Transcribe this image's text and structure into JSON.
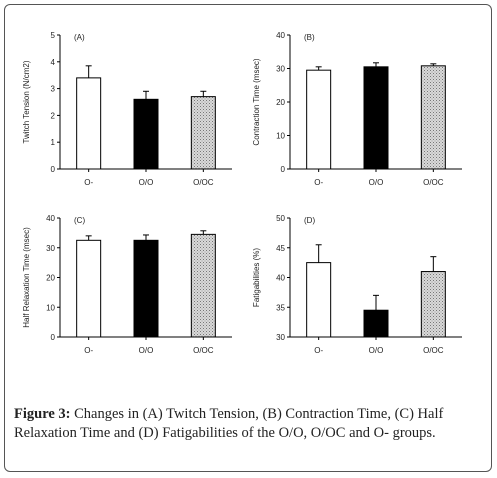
{
  "caption": {
    "label": "Figure 3:",
    "text": "Changes in (A) Twitch Tension, (B) Contraction Time, (C) Half Relaxation Time and (D) Fatigabilities of the O/O, O/OC and O- groups."
  },
  "colors": {
    "frame": "#555555",
    "bar_open": "#ffffff",
    "bar_filled": "#000000",
    "bar_stippled": "#d9d9d9"
  },
  "chart_data": [
    {
      "type": "bar",
      "panel_label": "(A)",
      "ylabel": "Twitch Tension (N/cm2)",
      "categories": [
        "O-",
        "O/O",
        "O/OC"
      ],
      "values": [
        3.4,
        2.6,
        2.7
      ],
      "errors": [
        0.45,
        0.3,
        0.2
      ],
      "ylim": [
        0,
        5
      ],
      "yticks": [
        "0",
        "1",
        "2",
        "3",
        "4",
        "5"
      ],
      "bar_styles": [
        "open",
        "filled",
        "stippled"
      ]
    },
    {
      "type": "bar",
      "panel_label": "(B)",
      "ylabel": "Contraction Time (msec)",
      "categories": [
        "O-",
        "O/O",
        "O/OC"
      ],
      "values": [
        29.5,
        30.5,
        30.8
      ],
      "errors": [
        1.0,
        1.2,
        0.6
      ],
      "ylim": [
        0,
        40
      ],
      "yticks": [
        "0",
        "10",
        "20",
        "30",
        "40"
      ],
      "bar_styles": [
        "open",
        "filled",
        "stippled"
      ]
    },
    {
      "type": "bar",
      "panel_label": "(C)",
      "ylabel": "Half Relaxation Time (msec)",
      "categories": [
        "O-",
        "O/O",
        "O/OC"
      ],
      "values": [
        32.5,
        32.5,
        34.5
      ],
      "errors": [
        1.5,
        1.8,
        1.2
      ],
      "ylim": [
        0,
        40
      ],
      "yticks": [
        "0",
        "10",
        "20",
        "30",
        "40"
      ],
      "bar_styles": [
        "open",
        "filled",
        "stippled"
      ]
    },
    {
      "type": "bar",
      "panel_label": "(D)",
      "ylabel": "Fatigabilities (%)",
      "categories": [
        "O-",
        "O/O",
        "O/OC"
      ],
      "values": [
        42.5,
        34.5,
        41.0
      ],
      "errors": [
        3.0,
        2.5,
        2.5
      ],
      "ylim": [
        30,
        50
      ],
      "yticks": [
        "30",
        "35",
        "40",
        "45",
        "50"
      ],
      "bar_styles": [
        "open",
        "filled",
        "stippled"
      ]
    }
  ]
}
